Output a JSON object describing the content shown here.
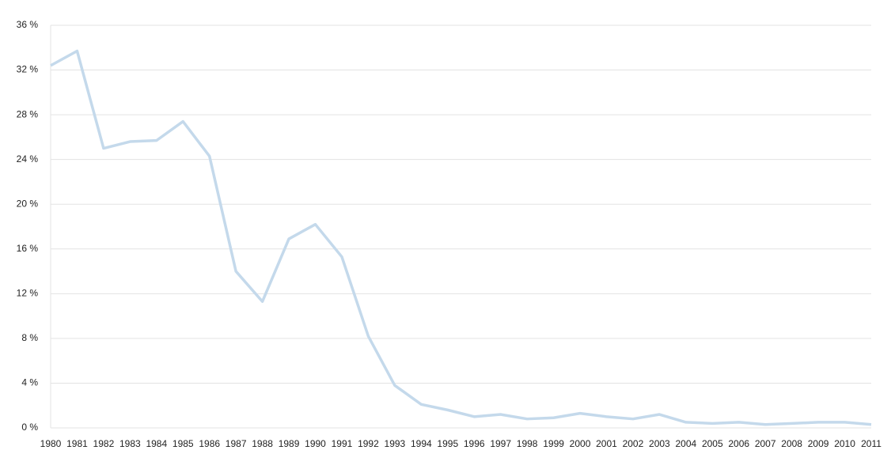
{
  "chart_data": {
    "type": "line",
    "categories": [
      "1980",
      "1981",
      "1982",
      "1983",
      "1984",
      "1985",
      "1986",
      "1987",
      "1988",
      "1989",
      "1990",
      "1991",
      "1992",
      "1993",
      "1994",
      "1995",
      "1996",
      "1997",
      "1998",
      "1999",
      "2000",
      "2001",
      "2002",
      "2003",
      "2004",
      "2005",
      "2006",
      "2007",
      "2008",
      "2009",
      "2010",
      "2011"
    ],
    "values": [
      32.4,
      33.7,
      25.0,
      25.6,
      25.7,
      27.4,
      24.3,
      14.0,
      11.3,
      16.9,
      18.2,
      15.3,
      8.2,
      3.8,
      2.1,
      1.6,
      1.0,
      1.2,
      0.8,
      0.9,
      1.3,
      1.0,
      0.8,
      1.2,
      0.5,
      0.4,
      0.5,
      0.3,
      0.4,
      0.5,
      0.5,
      0.3
    ],
    "color": "#c4d9eb",
    "ylim": [
      0,
      36
    ],
    "yticks": [
      {
        "value": 0,
        "label": "0 %"
      },
      {
        "value": 4,
        "label": "4 %"
      },
      {
        "value": 8,
        "label": "8 %"
      },
      {
        "value": 12,
        "label": "12 %"
      },
      {
        "value": 16,
        "label": "16 %"
      },
      {
        "value": 20,
        "label": "20 %"
      },
      {
        "value": 24,
        "label": "24 %"
      },
      {
        "value": 28,
        "label": "28 %"
      },
      {
        "value": 32,
        "label": "32 %"
      },
      {
        "value": 36,
        "label": "36 %"
      }
    ],
    "grid": true
  }
}
